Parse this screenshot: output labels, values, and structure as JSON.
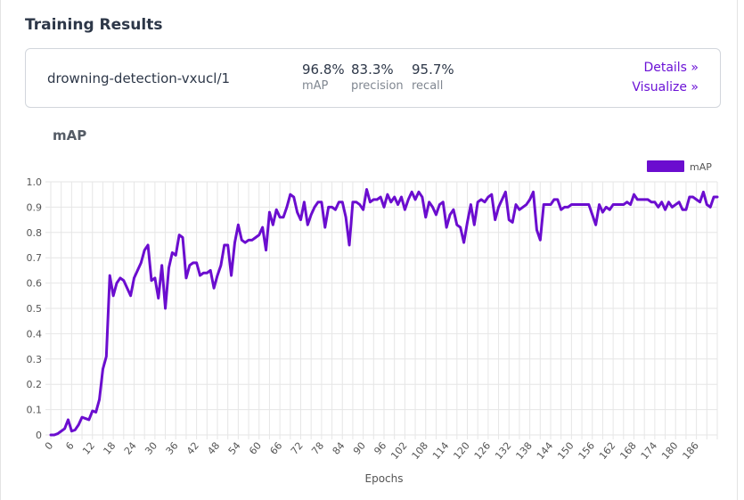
{
  "section_title": "Training Results",
  "model": {
    "name": "drowning-detection-vxucl/1",
    "metrics": [
      {
        "value": "96.8%",
        "label": "mAP"
      },
      {
        "value": "83.3%",
        "label": "precision"
      },
      {
        "value": "95.7%",
        "label": "recall"
      }
    ],
    "links": {
      "details": "Details »",
      "visualize": "Visualize »"
    }
  },
  "colors": {
    "accent": "#6b12d6",
    "series": "#6b0dcf",
    "grid": "#e6e6e6"
  },
  "chart_data": {
    "type": "line",
    "title": "mAP",
    "xlabel": "Epochs",
    "ylabel": "",
    "ylim": [
      0,
      1.0
    ],
    "yticks": [
      "0",
      "0.1",
      "0.2",
      "0.3",
      "0.4",
      "0.5",
      "0.6",
      "0.7",
      "0.8",
      "0.9",
      "1.0"
    ],
    "xticks": [
      "0",
      "6",
      "12",
      "18",
      "24",
      "30",
      "36",
      "42",
      "48",
      "54",
      "60",
      "66",
      "72",
      "78",
      "84",
      "90",
      "96",
      "102",
      "108",
      "114",
      "120",
      "126",
      "132",
      "138",
      "144",
      "150",
      "156",
      "162",
      "168",
      "174",
      "180",
      "186"
    ],
    "legend": "top-right",
    "series": [
      {
        "name": "mAP",
        "values": [
          0,
          0,
          0.005,
          0.015,
          0.025,
          0.06,
          0.015,
          0.02,
          0.04,
          0.07,
          0.065,
          0.06,
          0.095,
          0.09,
          0.14,
          0.26,
          0.31,
          0.63,
          0.55,
          0.6,
          0.62,
          0.61,
          0.58,
          0.55,
          0.62,
          0.65,
          0.68,
          0.73,
          0.75,
          0.61,
          0.62,
          0.54,
          0.67,
          0.5,
          0.66,
          0.72,
          0.71,
          0.79,
          0.78,
          0.62,
          0.67,
          0.68,
          0.68,
          0.63,
          0.64,
          0.64,
          0.65,
          0.58,
          0.63,
          0.67,
          0.75,
          0.75,
          0.63,
          0.76,
          0.83,
          0.77,
          0.76,
          0.77,
          0.77,
          0.78,
          0.79,
          0.82,
          0.73,
          0.88,
          0.83,
          0.89,
          0.86,
          0.86,
          0.9,
          0.95,
          0.94,
          0.88,
          0.85,
          0.92,
          0.83,
          0.87,
          0.9,
          0.92,
          0.92,
          0.82,
          0.9,
          0.9,
          0.89,
          0.92,
          0.92,
          0.86,
          0.75,
          0.92,
          0.92,
          0.91,
          0.89,
          0.97,
          0.92,
          0.93,
          0.93,
          0.94,
          0.9,
          0.95,
          0.92,
          0.94,
          0.91,
          0.94,
          0.89,
          0.93,
          0.96,
          0.93,
          0.96,
          0.94,
          0.86,
          0.92,
          0.9,
          0.87,
          0.91,
          0.92,
          0.82,
          0.87,
          0.89,
          0.83,
          0.82,
          0.76,
          0.84,
          0.91,
          0.83,
          0.92,
          0.93,
          0.92,
          0.94,
          0.95,
          0.85,
          0.9,
          0.93,
          0.96,
          0.85,
          0.84,
          0.91,
          0.89,
          0.9,
          0.91,
          0.93,
          0.96,
          0.81,
          0.77,
          0.91,
          0.91,
          0.91,
          0.93,
          0.93,
          0.89,
          0.9,
          0.9,
          0.91,
          0.91,
          0.91,
          0.91,
          0.91,
          0.91,
          0.87,
          0.83,
          0.91,
          0.88,
          0.9,
          0.89,
          0.91,
          0.91,
          0.91,
          0.91,
          0.92,
          0.91,
          0.95,
          0.93,
          0.93,
          0.93,
          0.93,
          0.92,
          0.92,
          0.9,
          0.92,
          0.89,
          0.92,
          0.9,
          0.91,
          0.92,
          0.89,
          0.89,
          0.94,
          0.94,
          0.93,
          0.92,
          0.96,
          0.91,
          0.9,
          0.94,
          0.94
        ]
      }
    ]
  }
}
